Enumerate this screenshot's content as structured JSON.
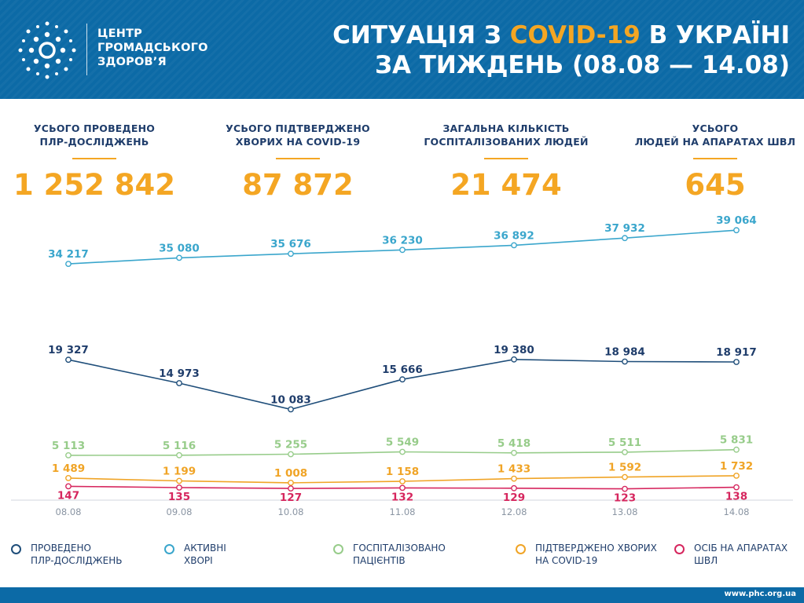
{
  "header": {
    "org_lines": [
      "ЦЕНТР",
      "ГРОМАДСЬКОГО",
      "ЗДОРОВ’Я"
    ],
    "title_line1_prefix": "СИТУАЦІЯ З ",
    "title_line1_accent": "COVID-19",
    "title_line1_suffix": " В УКРАЇНІ",
    "title_line2": "ЗА ТИЖДЕНЬ (08.08 — 14.08)"
  },
  "stats": [
    {
      "label_lines": [
        "УСЬОГО ПРОВЕДЕНО",
        "ПЛР-ДОСЛІДЖЕНЬ"
      ],
      "value": "1 252 842"
    },
    {
      "label_lines": [
        "УСЬОГО ПІДТВЕРДЖЕНО",
        "ХВОРИХ НА COVID-19"
      ],
      "value": "87 872"
    },
    {
      "label_lines": [
        "ЗАГАЛЬНА КІЛЬКІСТЬ",
        "ГОСПІТАЛІЗОВАНИХ ЛЮДЕЙ"
      ],
      "value": "21 474"
    },
    {
      "label_lines": [
        "УСЬОГО",
        "ЛЮДЕЙ НА АПАРАТАХ ШВЛ"
      ],
      "value": "645"
    }
  ],
  "colors": {
    "brand_blue": "#0c6aa6",
    "accent_orange": "#f4a623",
    "navy": "#1f3d6b"
  },
  "chart_data": {
    "type": "line",
    "categories": [
      "08.08",
      "09.08",
      "10.08",
      "11.08",
      "12.08",
      "13.08",
      "14.08"
    ],
    "series": [
      {
        "name": "АКТИВНІ ХВОРІ",
        "color": "#3aa6cc",
        "values": [
          34217,
          35080,
          35676,
          36230,
          36892,
          37932,
          39064
        ],
        "labels": [
          "34 217",
          "35 080",
          "35 676",
          "36 230",
          "36 892",
          "37 932",
          "39 064"
        ]
      },
      {
        "name": "ПРОВЕДЕНО ПЛР-ДОСЛІДЖЕНЬ",
        "color": "#1f4e7a",
        "values": [
          19327,
          14973,
          10083,
          15666,
          19380,
          18984,
          18917
        ],
        "labels": [
          "19 327",
          "14 973",
          "10 083",
          "15 666",
          "19 380",
          "18 984",
          "18 917"
        ]
      },
      {
        "name": "ГОСПІТАЛІЗОВАНО ПАЦІЄНТІВ",
        "color": "#97cc8a",
        "values": [
          5113,
          5116,
          5255,
          5549,
          5418,
          5511,
          5831
        ],
        "labels": [
          "5 113",
          "5 116",
          "5 255",
          "5 549",
          "5 418",
          "5 511",
          "5 831"
        ]
      },
      {
        "name": "ПІДТВЕРДЖЕНО ХВОРИХ НА COVID-19",
        "color": "#f0a426",
        "values": [
          1489,
          1199,
          1008,
          1158,
          1433,
          1592,
          1732
        ],
        "labels": [
          "1 489",
          "1 199",
          "1 008",
          "1 158",
          "1 433",
          "1 592",
          "1 732"
        ]
      },
      {
        "name": "ОСІБ НА АПАРАТАХ ШВЛ",
        "color": "#d6265e",
        "values": [
          147,
          135,
          127,
          132,
          129,
          123,
          138
        ],
        "labels": [
          "147",
          "135",
          "127",
          "132",
          "129",
          "123",
          "138"
        ]
      }
    ]
  },
  "legend": [
    {
      "lines": [
        "ПРОВЕДЕНО",
        "ПЛР-ДОСЛІДЖЕНЬ"
      ],
      "color": "#1f4e7a"
    },
    {
      "lines": [
        "АКТИВНІ",
        "ХВОРІ"
      ],
      "color": "#3aa6cc"
    },
    {
      "lines": [
        "ГОСПІТАЛІЗОВАНО",
        "ПАЦІЄНТІВ"
      ],
      "color": "#97cc8a"
    },
    {
      "lines": [
        "ПІДТВЕРДЖЕНО ХВОРИХ",
        "НА COVID-19"
      ],
      "color": "#f0a426"
    },
    {
      "lines": [
        "ОСІБ НА АПАРАТАХ",
        "ШВЛ"
      ],
      "color": "#d6265e"
    }
  ],
  "footer": {
    "site": "www.phc.org.ua"
  }
}
